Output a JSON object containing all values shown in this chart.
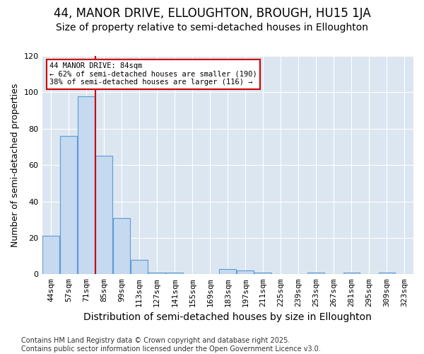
{
  "title1": "44, MANOR DRIVE, ELLOUGHTON, BROUGH, HU15 1JA",
  "title2": "Size of property relative to semi-detached houses in Elloughton",
  "xlabel": "Distribution of semi-detached houses by size in Elloughton",
  "ylabel": "Number of semi-detached properties",
  "categories": [
    "44sqm",
    "57sqm",
    "71sqm",
    "85sqm",
    "99sqm",
    "113sqm",
    "127sqm",
    "141sqm",
    "155sqm",
    "169sqm",
    "183sqm",
    "197sqm",
    "211sqm",
    "225sqm",
    "239sqm",
    "253sqm",
    "267sqm",
    "281sqm",
    "295sqm",
    "309sqm",
    "323sqm"
  ],
  "values": [
    21,
    76,
    98,
    65,
    31,
    8,
    1,
    1,
    0,
    0,
    3,
    2,
    1,
    0,
    0,
    1,
    0,
    1,
    0,
    1,
    0
  ],
  "bar_color": "#c5d9f0",
  "bar_edge_color": "#5b9bd5",
  "highlight_index": 3,
  "highlight_line_color": "#cc0000",
  "annotation_line1": "44 MANOR DRIVE: 84sqm",
  "annotation_line2": "← 62% of semi-detached houses are smaller (190)",
  "annotation_line3": "38% of semi-detached houses are larger (116) →",
  "annotation_box_color": "#cc0000",
  "ylim": [
    0,
    120
  ],
  "yticks": [
    0,
    20,
    40,
    60,
    80,
    100,
    120
  ],
  "footnote": "Contains HM Land Registry data © Crown copyright and database right 2025.\nContains public sector information licensed under the Open Government Licence v3.0.",
  "bg_color": "#ffffff",
  "plot_bg_color": "#dce6f1",
  "title1_fontsize": 12,
  "title2_fontsize": 10,
  "xlabel_fontsize": 10,
  "ylabel_fontsize": 9,
  "tick_fontsize": 8,
  "footnote_fontsize": 7
}
